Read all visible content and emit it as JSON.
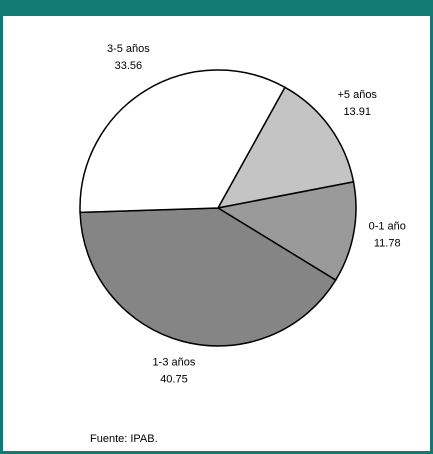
{
  "chart_data": {
    "type": "pie",
    "categories": [
      "+5 años",
      "0-1 año",
      "1-3 años",
      "3-5 años"
    ],
    "values": [
      13.91,
      11.78,
      40.75,
      33.56
    ],
    "colors": [
      "#c4c4c4",
      "#9a9a9a",
      "#858585",
      "#ffffff"
    ],
    "source": "Fuente: IPAB."
  }
}
